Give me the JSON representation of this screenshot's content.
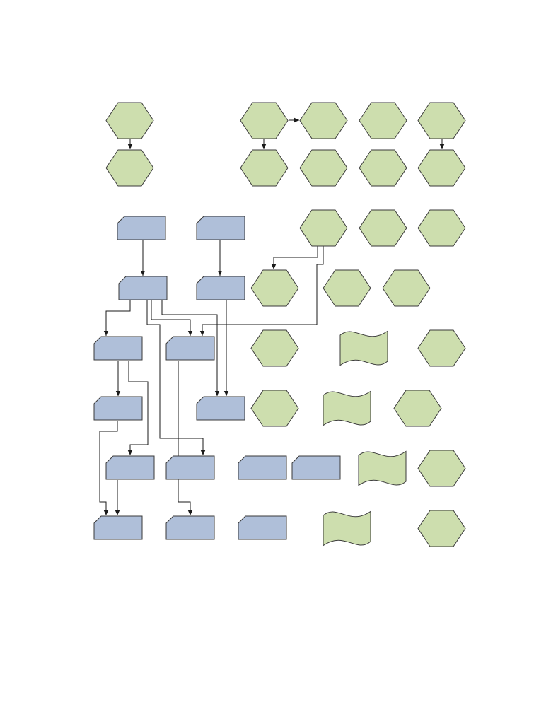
{
  "diagram": {
    "colors": {
      "hexagon_fill": "#cddeae",
      "card_fill": "#afbfd9",
      "tape_fill": "#cddeae",
      "stroke": "#3a3a3a",
      "connector": "#1a1a1a",
      "background": "#ffffff"
    },
    "shape_types": [
      "hexagon",
      "card",
      "tape"
    ],
    "labels_visible": false
  }
}
